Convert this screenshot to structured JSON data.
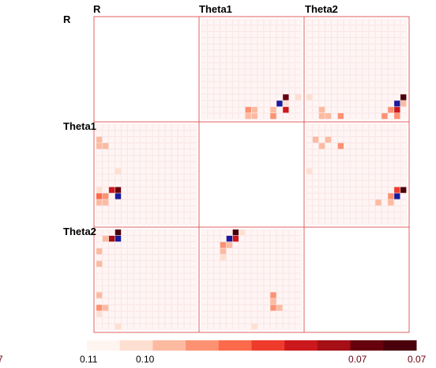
{
  "chart_data": {
    "type": "heatmap",
    "title": "",
    "variables": [
      "R",
      "Theta1",
      "Theta2"
    ],
    "grid_size": 16,
    "colors": {
      "frame": "#e06060",
      "gridline": "#f6dede",
      "background_cell": "#fff5f5",
      "negative_accent": "#1a1a9e",
      "scale": [
        "#fff5f0",
        "#fee0d2",
        "#fcbba1",
        "#fc9272",
        "#fb6a4a",
        "#ef3b2c",
        "#cb181d",
        "#a50f15",
        "#67000d",
        "#4a000a"
      ]
    },
    "panels": [
      {
        "row": "R",
        "col": "Theta1",
        "cells": [
          {
            "x": 13,
            "y": 12,
            "v": 8
          },
          {
            "x": 12,
            "y": 13,
            "v": -1
          },
          {
            "x": 13,
            "y": 13,
            "v": 1
          },
          {
            "x": 11,
            "y": 14,
            "v": 2
          },
          {
            "x": 13,
            "y": 14,
            "v": 6
          },
          {
            "x": 11,
            "y": 15,
            "v": 3
          },
          {
            "x": 15,
            "y": 12,
            "v": 1
          },
          {
            "x": 7,
            "y": 14,
            "v": 3
          },
          {
            "x": 8,
            "y": 14,
            "v": 2
          },
          {
            "x": 7,
            "y": 15,
            "v": 2
          },
          {
            "x": 8,
            "y": 15,
            "v": 2
          }
        ]
      },
      {
        "row": "R",
        "col": "Theta2",
        "cells": [
          {
            "x": 0,
            "y": 12,
            "v": 1
          },
          {
            "x": 2,
            "y": 14,
            "v": 2
          },
          {
            "x": 2,
            "y": 15,
            "v": 2
          },
          {
            "x": 3,
            "y": 15,
            "v": 2
          },
          {
            "x": 5,
            "y": 15,
            "v": 3
          },
          {
            "x": 12,
            "y": 15,
            "v": 3
          },
          {
            "x": 13,
            "y": 14,
            "v": 3
          },
          {
            "x": 14,
            "y": 13,
            "v": -1
          },
          {
            "x": 15,
            "y": 12,
            "v": 9
          },
          {
            "x": 15,
            "y": 13,
            "v": 2
          },
          {
            "x": 14,
            "y": 14,
            "v": 6
          },
          {
            "x": 14,
            "y": 15,
            "v": 3
          }
        ]
      },
      {
        "row": "Theta1",
        "col": "R",
        "cells": [
          {
            "x": 0,
            "y": 2,
            "v": 2
          },
          {
            "x": 0,
            "y": 3,
            "v": 2
          },
          {
            "x": 1,
            "y": 3,
            "v": 2
          },
          {
            "x": 3,
            "y": 7,
            "v": 1
          },
          {
            "x": 0,
            "y": 10,
            "v": 1
          },
          {
            "x": 2,
            "y": 10,
            "v": 6
          },
          {
            "x": 3,
            "y": 10,
            "v": 8
          },
          {
            "x": 0,
            "y": 11,
            "v": 4
          },
          {
            "x": 1,
            "y": 11,
            "v": 3
          },
          {
            "x": 3,
            "y": 11,
            "v": -1
          },
          {
            "x": 0,
            "y": 12,
            "v": 2
          },
          {
            "x": 1,
            "y": 12,
            "v": 2
          }
        ]
      },
      {
        "row": "Theta1",
        "col": "Theta2",
        "cells": [
          {
            "x": 1,
            "y": 2,
            "v": 2
          },
          {
            "x": 3,
            "y": 2,
            "v": 2
          },
          {
            "x": 5,
            "y": 3,
            "v": 3
          },
          {
            "x": 2,
            "y": 3,
            "v": 2
          },
          {
            "x": 0,
            "y": 7,
            "v": 1
          },
          {
            "x": 14,
            "y": 10,
            "v": 5
          },
          {
            "x": 15,
            "y": 10,
            "v": 9
          },
          {
            "x": 13,
            "y": 11,
            "v": 3
          },
          {
            "x": 14,
            "y": 11,
            "v": -1
          },
          {
            "x": 11,
            "y": 12,
            "v": 2
          },
          {
            "x": 13,
            "y": 12,
            "v": 2
          }
        ]
      },
      {
        "row": "Theta2",
        "col": "R",
        "cells": [
          {
            "x": 3,
            "y": 0,
            "v": 9
          },
          {
            "x": 2,
            "y": 1,
            "v": 7
          },
          {
            "x": 3,
            "y": 1,
            "v": -1
          },
          {
            "x": 1,
            "y": 1,
            "v": 2
          },
          {
            "x": 0,
            "y": 3,
            "v": 2
          },
          {
            "x": 0,
            "y": 5,
            "v": 2
          },
          {
            "x": 0,
            "y": 10,
            "v": 2
          },
          {
            "x": 0,
            "y": 12,
            "v": 3
          },
          {
            "x": 1,
            "y": 12,
            "v": 2
          },
          {
            "x": 0,
            "y": 13,
            "v": 1
          },
          {
            "x": 3,
            "y": 15,
            "v": 1
          }
        ]
      },
      {
        "row": "Theta2",
        "col": "Theta1",
        "cells": [
          {
            "x": 5,
            "y": 0,
            "v": 9
          },
          {
            "x": 4,
            "y": 1,
            "v": -1
          },
          {
            "x": 5,
            "y": 1,
            "v": 6
          },
          {
            "x": 6,
            "y": 0,
            "v": 1
          },
          {
            "x": 3,
            "y": 2,
            "v": 3
          },
          {
            "x": 4,
            "y": 2,
            "v": 2
          },
          {
            "x": 3,
            "y": 3,
            "v": 2
          },
          {
            "x": 3,
            "y": 4,
            "v": 1
          },
          {
            "x": 11,
            "y": 10,
            "v": 3
          },
          {
            "x": 11,
            "y": 11,
            "v": 2
          },
          {
            "x": 11,
            "y": 12,
            "v": 3
          },
          {
            "x": 12,
            "y": 12,
            "v": 2
          },
          {
            "x": 8,
            "y": 15,
            "v": 1
          }
        ]
      }
    ],
    "colorbar": {
      "tick_labels": [
        "0.11",
        "0.10",
        "0.07",
        "0.07"
      ],
      "left_partial_label": "7"
    }
  }
}
